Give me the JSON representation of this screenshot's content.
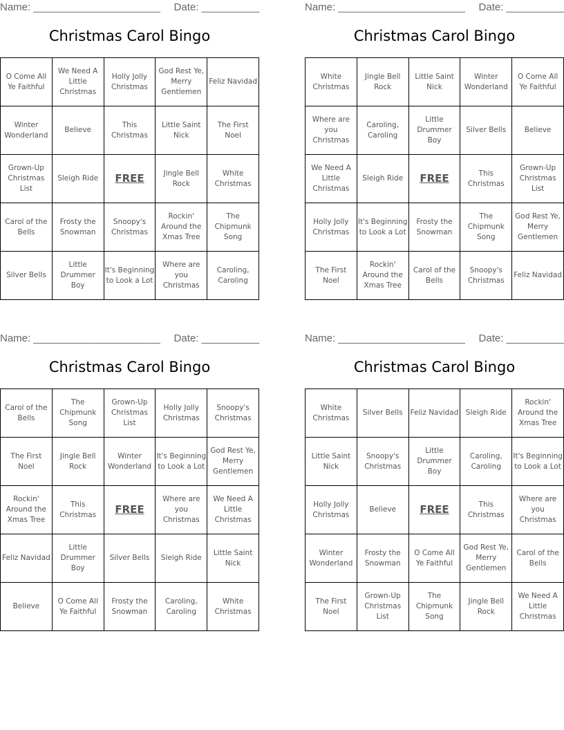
{
  "name_label": "Name: ______________________",
  "date_label": "Date: __________",
  "title": "Christmas Carol Bingo",
  "cards": [
    {
      "rows": [
        [
          "O Come All Ye Faithful",
          "We Need A Little Christmas",
          "Holly Jolly Christmas",
          "God Rest Ye, Merry Gentlemen",
          "Feliz Navidad"
        ],
        [
          "Winter Wonderland",
          "Believe",
          "This Christmas",
          "Little Saint Nick",
          "The First Noel"
        ],
        [
          "Grown-Up Christmas List",
          "Sleigh Ride",
          "FREE",
          "Jingle Bell Rock",
          "White Christmas"
        ],
        [
          "Carol of the Bells",
          "Frosty the Snowman",
          "Snoopy's Christmas",
          "Rockin' Around the Xmas Tree",
          "The Chipmunk Song"
        ],
        [
          "Silver Bells",
          "Little Drummer Boy",
          "It's Beginning to Look a Lot",
          "Where are you Christmas",
          "Caroling, Caroling"
        ]
      ]
    },
    {
      "rows": [
        [
          "White Christmas",
          "Jingle Bell Rock",
          "Little Saint Nick",
          "Winter Wonderland",
          "O Come All Ye Faithful"
        ],
        [
          "Where are you Christmas",
          "Caroling, Caroling",
          "Little Drummer Boy",
          "Silver Bells",
          "Believe"
        ],
        [
          "We Need A Little Christmas",
          "Sleigh Ride",
          "FREE",
          "This Christmas",
          "Grown-Up Christmas List"
        ],
        [
          "Holly Jolly Christmas",
          "It's Beginning to Look a Lot",
          "Frosty the Snowman",
          "The Chipmunk Song",
          "God Rest Ye, Merry Gentlemen"
        ],
        [
          "The First Noel",
          "Rockin' Around the Xmas Tree",
          "Carol of the Bells",
          "Snoopy's Christmas",
          "Feliz Navidad"
        ]
      ]
    },
    {
      "rows": [
        [
          "Carol of the Bells",
          "The Chipmunk Song",
          "Grown-Up Christmas List",
          "Holly Jolly Christmas",
          "Snoopy's Christmas"
        ],
        [
          "The First Noel",
          "Jingle Bell Rock",
          "Winter Wonderland",
          "It's Beginning to Look a Lot",
          "God Rest Ye, Merry Gentlemen"
        ],
        [
          "Rockin' Around the Xmas Tree",
          "This Christmas",
          "FREE",
          "Where are you Christmas",
          "We Need A Little Christmas"
        ],
        [
          "Feliz Navidad",
          "Little Drummer Boy",
          "Silver Bells",
          "Sleigh Ride",
          "Little Saint Nick"
        ],
        [
          "Believe",
          "O Come All Ye Faithful",
          "Frosty the Snowman",
          "Caroling, Caroling",
          "White Christmas"
        ]
      ]
    },
    {
      "rows": [
        [
          "White Christmas",
          "Silver Bells",
          "Feliz Navidad",
          "Sleigh Ride",
          "Rockin' Around the Xmas Tree"
        ],
        [
          "Little Saint Nick",
          "Snoopy's Christmas",
          "Little Drummer Boy",
          "Caroling, Caroling",
          "It's Beginning to Look a Lot"
        ],
        [
          "Holly Jolly Christmas",
          "Believe",
          "FREE",
          "This Christmas",
          "Where are you Christmas"
        ],
        [
          "Winter Wonderland",
          "Frosty the Snowman",
          "O Come All Ye Faithful",
          "God Rest Ye, Merry Gentlemen",
          "Carol of the Bells"
        ],
        [
          "The First Noel",
          "Grown-Up Christmas List",
          "The Chipmunk Song",
          "Jingle Bell Rock",
          "We Need A Little Christmas"
        ]
      ]
    }
  ]
}
